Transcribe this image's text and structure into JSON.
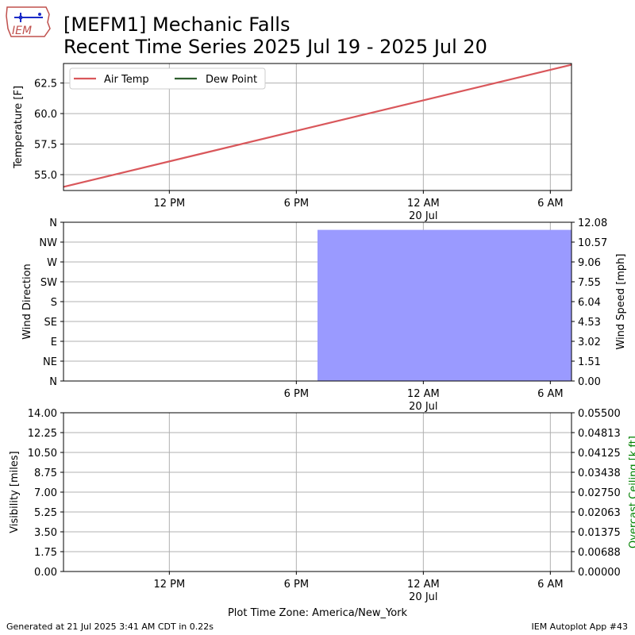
{
  "header": {
    "logo_text": "IEM",
    "title_line1": "[MEFM1] Mechanic Falls",
    "title_line2": "Recent Time Series 2025 Jul 19 - 2025 Jul 20"
  },
  "footer": {
    "generated": "Generated at 21 Jul 2025 3:41 AM CDT in 0.22s",
    "app": "IEM Autoplot App #43",
    "timezone": "Plot Time Zone: America/New_York"
  },
  "colors": {
    "air_temp": "#d9575b",
    "dew_point": "#2e5e2e",
    "wind_bar": "#9a9aff",
    "ceiling_label": "#008000",
    "grid": "#b0b0b0"
  },
  "chart_data": [
    {
      "type": "line",
      "name": "temperature",
      "ylabel": "Temperature [F]",
      "ylim": [
        53.7,
        64.1
      ],
      "yticks": [
        "55.0",
        "57.5",
        "60.0",
        "62.5"
      ],
      "yticks_values": [
        55.0,
        57.5,
        60.0,
        62.5
      ],
      "x_range": [
        "2025-07-19 07:00",
        "2025-07-20 07:00"
      ],
      "xticks": [
        {
          "time": "2025-07-19 12:00",
          "label": "12 PM",
          "sub": ""
        },
        {
          "time": "2025-07-19 18:00",
          "label": "6 PM",
          "sub": ""
        },
        {
          "time": "2025-07-20 00:00",
          "label": "12 AM",
          "sub": "20 Jul"
        },
        {
          "time": "2025-07-20 06:00",
          "label": "6 AM",
          "sub": ""
        }
      ],
      "grid": true,
      "legend": "top-left",
      "series": [
        {
          "name": "Air Temp",
          "color": "#d9575b",
          "x": [
            "2025-07-19 07:00",
            "2025-07-20 07:00"
          ],
          "y": [
            54.0,
            64.0
          ]
        },
        {
          "name": "Dew Point",
          "color": "#2e5e2e",
          "x": [],
          "y": []
        }
      ]
    },
    {
      "type": "bar",
      "name": "wind",
      "ylabel": "Wind Direction",
      "ylabel_right": "Wind Speed [mph]",
      "yticks_left": [
        "N",
        "NE",
        "E",
        "SE",
        "S",
        "SW",
        "W",
        "NW",
        "N"
      ],
      "yticks_right": [
        "0.00",
        "1.51",
        "3.02",
        "4.53",
        "6.04",
        "7.55",
        "9.06",
        "10.57",
        "12.08"
      ],
      "ylim_right": [
        0,
        12.08
      ],
      "x_range": [
        "2025-07-19 07:00",
        "2025-07-20 07:00"
      ],
      "xticks": [
        {
          "time": "2025-07-19 18:00",
          "label": "6 PM",
          "sub": ""
        },
        {
          "time": "2025-07-20 00:00",
          "label": "12 AM",
          "sub": "20 Jul"
        },
        {
          "time": "2025-07-20 06:00",
          "label": "6 AM",
          "sub": ""
        }
      ],
      "grid": true,
      "bars": [
        {
          "start": "2025-07-19 19:00",
          "end": "2025-07-20 07:00",
          "speed": 11.5
        }
      ]
    },
    {
      "type": "line",
      "name": "visibility",
      "ylabel": "Visibility [miles]",
      "ylabel_right": "Overcast Ceiling [k ft]",
      "yticks_left": [
        "0.00",
        "1.75",
        "3.50",
        "5.25",
        "7.00",
        "8.75",
        "10.50",
        "12.25",
        "14.00"
      ],
      "yticks_right": [
        "0.00000",
        "0.00688",
        "0.01375",
        "0.02063",
        "0.02750",
        "0.03438",
        "0.04125",
        "0.04813",
        "0.05500"
      ],
      "ylim_left": [
        0,
        14
      ],
      "ylim_right": [
        0,
        0.055
      ],
      "x_range": [
        "2025-07-19 07:00",
        "2025-07-20 07:00"
      ],
      "xticks": [
        {
          "time": "2025-07-19 12:00",
          "label": "12 PM",
          "sub": ""
        },
        {
          "time": "2025-07-19 18:00",
          "label": "6 PM",
          "sub": ""
        },
        {
          "time": "2025-07-20 00:00",
          "label": "12 AM",
          "sub": "20 Jul"
        },
        {
          "time": "2025-07-20 06:00",
          "label": "6 AM",
          "sub": ""
        }
      ],
      "grid": true,
      "series": []
    }
  ]
}
